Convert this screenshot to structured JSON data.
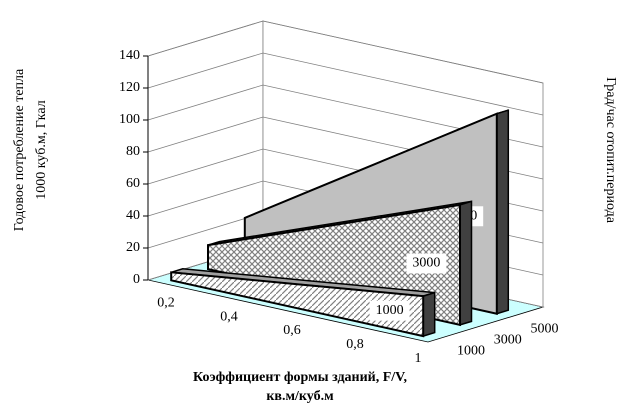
{
  "chart_data": {
    "type": "area3d",
    "ylabel": [
      "Годовое потребление тепла",
      "1000 куб.м, Гкал"
    ],
    "xlabel": [
      "Коэффициент формы зданий, F/V,",
      "кв.м/куб.м"
    ],
    "zlabel": "Град/час отопит.периода",
    "categories": [
      "0,2",
      "0,4",
      "0,6",
      "0,8",
      "1"
    ],
    "ylim": [
      0,
      140
    ],
    "yticks": [
      0,
      20,
      40,
      60,
      80,
      100,
      120,
      140
    ],
    "grid": true,
    "floor_color": "#ccffff",
    "series": [
      {
        "name": "1000",
        "color": "#808080",
        "pattern": "diagonal",
        "values": [
          5,
          10,
          15,
          20,
          25
        ]
      },
      {
        "name": "3000",
        "color": "#808080",
        "pattern": "crosshatch",
        "values": [
          15,
          30,
          45,
          60,
          75
        ]
      },
      {
        "name": "5000",
        "color": "#c0c0c0",
        "pattern": "solid",
        "values": [
          25,
          50,
          75,
          100,
          125
        ]
      }
    ]
  }
}
